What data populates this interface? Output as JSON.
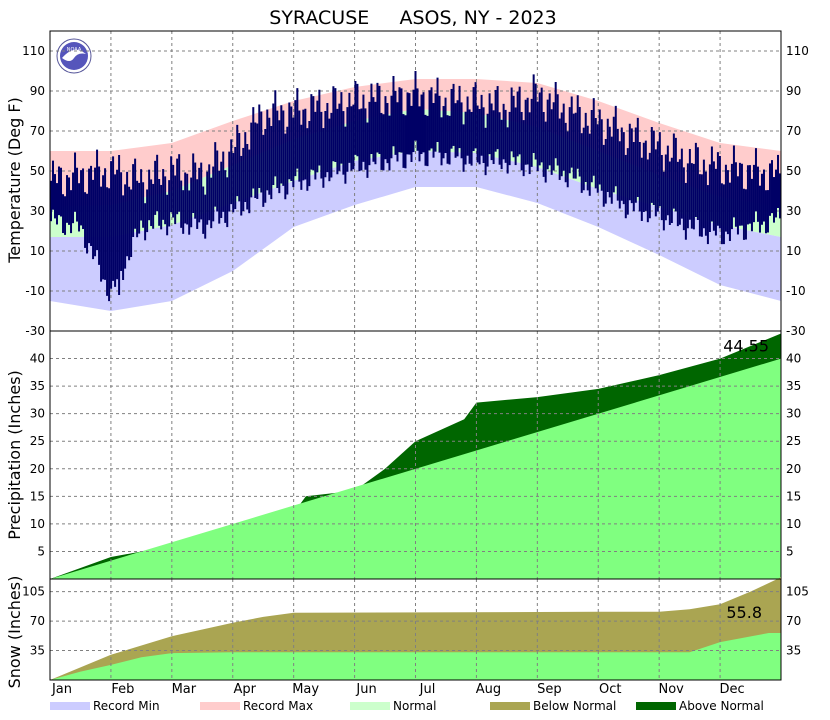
{
  "title": "SYRACUSE     ASOS, NY - 2023",
  "colors": {
    "record_min": "#ccccff",
    "record_max": "#ffcccc",
    "normal": "#ccffcc",
    "observed_temp": "#000066",
    "normal_precip": "#80ff80",
    "above_normal": "#006600",
    "below_normal": "#aaa552"
  },
  "months": [
    "Jan",
    "Feb",
    "Mar",
    "Apr",
    "May",
    "Jun",
    "Jul",
    "Aug",
    "Sep",
    "Oct",
    "Nov",
    "Dec"
  ],
  "legend": [
    {
      "label": "Record Min",
      "color_key": "record_min"
    },
    {
      "label": "Record Max",
      "color_key": "record_max"
    },
    {
      "label": "Normal",
      "color_key": "normal"
    },
    {
      "label": "Below Normal",
      "color_key": "below_normal"
    },
    {
      "label": "Above Normal",
      "color_key": "above_normal"
    }
  ],
  "chart_data": [
    {
      "type": "area",
      "panel": "temperature",
      "ylabel": "Temperature (Deg F)",
      "ylim": [
        -30,
        120
      ],
      "yticks": [
        "110",
        "90",
        "70",
        "50",
        "30",
        "10",
        "-10",
        "-30"
      ],
      "x_unit": "month",
      "grid": true,
      "record_max_band": {
        "x": [
          0,
          1,
          2,
          3,
          4,
          5,
          6,
          7,
          8,
          9,
          10,
          11,
          12
        ],
        "values": [
          60,
          60,
          64,
          75,
          85,
          92,
          96,
          96,
          94,
          85,
          74,
          64,
          60
        ]
      },
      "record_min_band": {
        "x": [
          0,
          1,
          2,
          3,
          4,
          5,
          6,
          7,
          8,
          9,
          10,
          11,
          12
        ],
        "values": [
          -15,
          -20,
          -15,
          0,
          22,
          33,
          42,
          42,
          34,
          22,
          8,
          -7,
          -15
        ]
      },
      "normal_high": {
        "x": [
          0,
          1,
          2,
          3,
          4,
          5,
          6,
          7,
          8,
          9,
          10,
          11,
          12
        ],
        "values": [
          32,
          33,
          40,
          53,
          66,
          75,
          81,
          79,
          72,
          60,
          48,
          37,
          32
        ]
      },
      "normal_low": {
        "x": [
          0,
          1,
          2,
          3,
          4,
          5,
          6,
          7,
          8,
          9,
          10,
          11,
          12
        ],
        "values": [
          17,
          17,
          23,
          34,
          45,
          55,
          60,
          59,
          52,
          41,
          32,
          23,
          17
        ]
      },
      "observed_high": {
        "x": [
          0,
          0.5,
          1,
          1.5,
          2,
          2.5,
          3,
          3.5,
          4,
          4.5,
          5,
          5.5,
          6,
          6.5,
          7,
          7.5,
          8,
          8.5,
          9,
          9.5,
          10,
          10.5,
          11,
          11.5,
          12
        ],
        "values": [
          45,
          48,
          50,
          45,
          50,
          48,
          60,
          78,
          80,
          82,
          85,
          86,
          88,
          85,
          84,
          82,
          88,
          80,
          75,
          68,
          62,
          55,
          52,
          50,
          48
        ]
      },
      "observed_low": {
        "x": [
          0,
          0.5,
          1,
          1.5,
          2,
          2.5,
          3,
          3.5,
          4,
          4.5,
          5,
          5.5,
          6,
          6.5,
          7,
          7.5,
          8,
          8.5,
          9,
          9.5,
          10,
          10.5,
          11,
          11.5,
          12
        ],
        "values": [
          25,
          22,
          -12,
          22,
          25,
          22,
          30,
          38,
          44,
          48,
          52,
          55,
          58,
          58,
          55,
          55,
          52,
          48,
          40,
          32,
          28,
          22,
          18,
          22,
          26
        ]
      }
    },
    {
      "type": "area",
      "panel": "precipitation",
      "ylabel": "Precipitation (Inches)",
      "ylim": [
        0,
        45
      ],
      "yticks": [
        "40",
        "35",
        "30",
        "25",
        "20",
        "15",
        "10",
        "5"
      ],
      "x_unit": "month",
      "grid": true,
      "annotation": "44.55",
      "series": [
        {
          "name": "Normal",
          "x": [
            0,
            12
          ],
          "values": [
            0,
            40
          ]
        },
        {
          "name": "Observed",
          "x": [
            0,
            1,
            2,
            3,
            4,
            4.2,
            5,
            5.5,
            6,
            6.8,
            7,
            8,
            9,
            10,
            11,
            12
          ],
          "values": [
            0,
            4,
            6,
            8,
            12,
            15,
            16,
            20,
            25,
            29,
            32,
            33,
            34.5,
            37,
            40,
            44.55
          ]
        }
      ]
    },
    {
      "type": "area",
      "panel": "snow",
      "ylabel": "Snow (Inches)",
      "ylim": [
        0,
        120
      ],
      "yticks": [
        "105",
        "70",
        "35"
      ],
      "x_unit": "month",
      "grid": true,
      "annotation": "55.8",
      "series": [
        {
          "name": "Normal",
          "x": [
            0,
            1,
            2,
            2.5,
            3,
            3.5,
            4,
            9,
            10,
            10.5,
            11,
            11.5,
            12
          ],
          "values": [
            0,
            30,
            52,
            60,
            68,
            75,
            80,
            81,
            81,
            84,
            90,
            105,
            122
          ]
        },
        {
          "name": "Observed",
          "x": [
            0,
            0.5,
            1,
            1.5,
            2,
            3,
            10.5,
            11,
            11.8,
            12
          ],
          "values": [
            0,
            10,
            18,
            27,
            32,
            33,
            33,
            45,
            55.8,
            55.8
          ]
        }
      ]
    }
  ]
}
